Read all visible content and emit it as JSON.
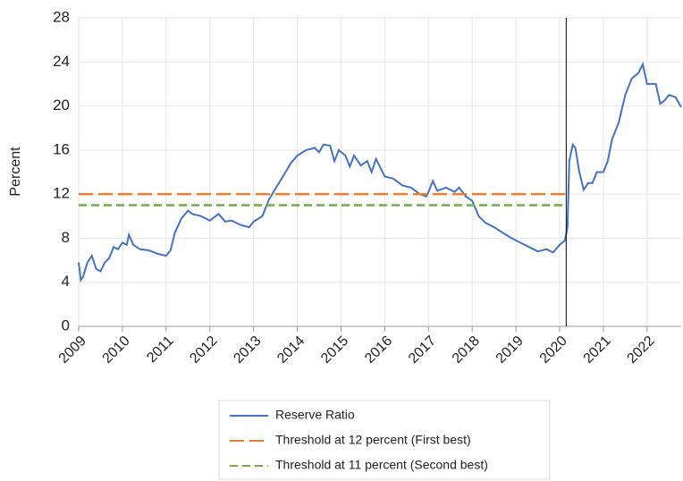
{
  "chart_data": {
    "type": "line",
    "y_label": "Percent",
    "xlim": [
      2009,
      2022.78
    ],
    "ylim": [
      0,
      28
    ],
    "xticks": [
      2009,
      2010,
      2011,
      2012,
      2013,
      2014,
      2015,
      2016,
      2017,
      2018,
      2019,
      2020,
      2021,
      2022
    ],
    "yticks": [
      0,
      4,
      8,
      12,
      16,
      20,
      24,
      28
    ],
    "grid": true,
    "vline": 2020.15,
    "series": [
      {
        "name": "Reserve Ratio",
        "color": "#4472c4",
        "dash": "solid",
        "x": [
          2009.0,
          2009.05,
          2009.1,
          2009.2,
          2009.3,
          2009.4,
          2009.5,
          2009.6,
          2009.7,
          2009.8,
          2009.9,
          2010.0,
          2010.1,
          2010.15,
          2010.25,
          2010.4,
          2010.6,
          2010.8,
          2011.0,
          2011.1,
          2011.2,
          2011.35,
          2011.5,
          2011.6,
          2011.8,
          2012.0,
          2012.2,
          2012.35,
          2012.5,
          2012.7,
          2012.9,
          2013.0,
          2013.2,
          2013.35,
          2013.5,
          2013.7,
          2013.85,
          2014.0,
          2014.2,
          2014.4,
          2014.5,
          2014.6,
          2014.75,
          2014.85,
          2014.95,
          2015.1,
          2015.2,
          2015.3,
          2015.45,
          2015.6,
          2015.7,
          2015.8,
          2016.0,
          2016.2,
          2016.4,
          2016.6,
          2016.8,
          2016.95,
          2017.0,
          2017.1,
          2017.2,
          2017.4,
          2017.6,
          2017.7,
          2017.85,
          2018.0,
          2018.15,
          2018.3,
          2018.5,
          2018.7,
          2018.9,
          2019.1,
          2019.3,
          2019.5,
          2019.7,
          2019.85,
          2020.0,
          2020.12,
          2020.18,
          2020.22,
          2020.3,
          2020.36,
          2020.45,
          2020.55,
          2020.65,
          2020.75,
          2020.85,
          2021.0,
          2021.1,
          2021.2,
          2021.35,
          2021.5,
          2021.65,
          2021.8,
          2021.9,
          2022.0,
          2022.2,
          2022.3,
          2022.4,
          2022.5,
          2022.65,
          2022.78
        ],
        "values": [
          5.8,
          4.2,
          4.5,
          5.8,
          6.4,
          5.2,
          5.0,
          5.8,
          6.2,
          7.2,
          7.0,
          7.6,
          7.4,
          8.3,
          7.4,
          7.0,
          6.9,
          6.6,
          6.4,
          6.9,
          8.5,
          9.8,
          10.5,
          10.2,
          10.0,
          9.6,
          10.2,
          9.5,
          9.6,
          9.2,
          9.0,
          9.5,
          10.0,
          11.5,
          12.5,
          13.8,
          14.8,
          15.5,
          16.0,
          16.2,
          15.8,
          16.5,
          16.4,
          15.0,
          16.0,
          15.5,
          14.5,
          15.5,
          14.6,
          15.0,
          14.0,
          15.2,
          13.6,
          13.4,
          12.8,
          12.6,
          12.0,
          11.8,
          12.2,
          13.2,
          12.3,
          12.6,
          12.2,
          12.6,
          11.8,
          11.4,
          10.0,
          9.4,
          9.0,
          8.5,
          8.0,
          7.6,
          7.2,
          6.8,
          7.0,
          6.7,
          7.4,
          7.8,
          9.0,
          15.0,
          16.5,
          16.2,
          14.0,
          12.4,
          13.0,
          13.0,
          14.0,
          14.0,
          15.0,
          17.0,
          18.5,
          21.0,
          22.5,
          23.0,
          23.8,
          22.0,
          22.0,
          20.2,
          20.5,
          21.0,
          20.8,
          19.9
        ]
      },
      {
        "name": "Threshold at 12 percent (First best)",
        "color": "#ed7d31",
        "dash": "long",
        "x": [
          2009,
          2020.15
        ],
        "values": [
          12,
          12
        ]
      },
      {
        "name": "Threshold at 11 percent (Second best)",
        "color": "#70ad47",
        "dash": "short",
        "x": [
          2009,
          2020.15
        ],
        "values": [
          11,
          11
        ]
      }
    ]
  }
}
